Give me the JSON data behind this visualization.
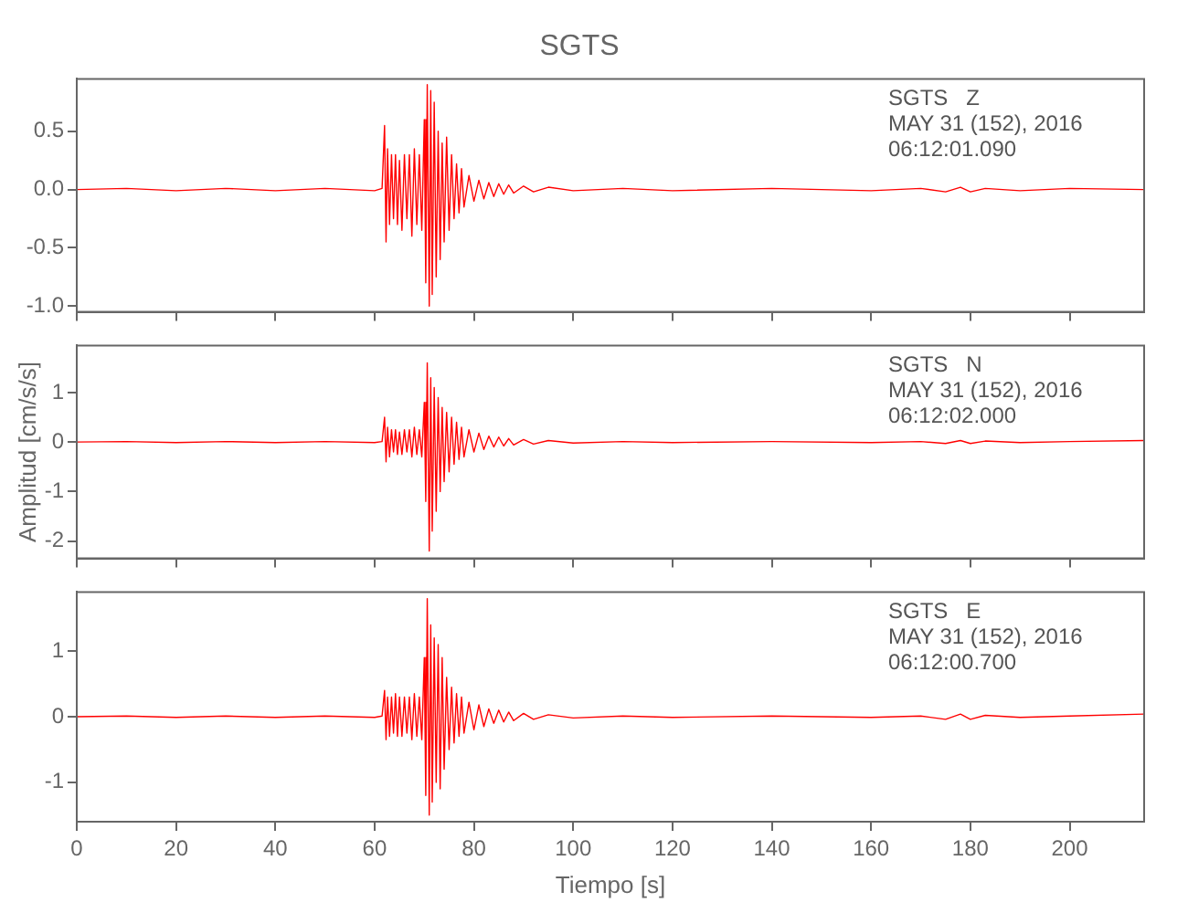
{
  "chart_data": [
    {
      "type": "line",
      "title": "SGTS",
      "annotations": [
        "SGTS   Z",
        "MAY 31 (152), 2016",
        "06:12:01.090"
      ],
      "tick_labels": "y",
      "xlim": [
        0,
        215
      ],
      "xticks": [
        0,
        20,
        40,
        60,
        80,
        100,
        120,
        140,
        160,
        180,
        200
      ],
      "ylim": [
        -1.05,
        0.95
      ],
      "yticks": [
        {
          "value": 0.5,
          "label": "0.5"
        },
        {
          "value": 0,
          "label": "0.0"
        },
        {
          "value": -0.5,
          "label": "-0.5"
        },
        {
          "value": -1,
          "label": "-1.0"
        }
      ],
      "marker": "none",
      "x": [
        0,
        10,
        20,
        30,
        40,
        50,
        60,
        61.5,
        62,
        62.3,
        62.6,
        63,
        63.4,
        63.8,
        64.2,
        64.6,
        65,
        65.5,
        66,
        66.5,
        67,
        67.5,
        68,
        68.5,
        69,
        69.5,
        70,
        70.3,
        70.6,
        71,
        71.3,
        71.6,
        72,
        72.4,
        72.8,
        73.2,
        73.6,
        74,
        74.5,
        75,
        75.5,
        76,
        76.5,
        77,
        77.5,
        78,
        79,
        80,
        81,
        82,
        83,
        84,
        85,
        86,
        87,
        88,
        90,
        92,
        95,
        100,
        110,
        120,
        140,
        160,
        170,
        175,
        178,
        180,
        183,
        190,
        200,
        215
      ],
      "series": [
        {
          "color": "#ff0000",
          "values": [
            0,
            0.01,
            -0.01,
            0.01,
            -0.01,
            0.01,
            -0.01,
            0.01,
            0.55,
            -0.45,
            0.35,
            -0.3,
            0.3,
            -0.25,
            0.3,
            -0.3,
            0.25,
            -0.35,
            0.3,
            -0.25,
            0.3,
            -0.4,
            0.35,
            -0.3,
            0.3,
            -0.35,
            0.6,
            -0.8,
            0.9,
            -1.0,
            0.85,
            -0.9,
            0.75,
            -0.75,
            0.5,
            -0.6,
            0.4,
            -0.45,
            0.45,
            -0.35,
            0.3,
            -0.25,
            0.22,
            -0.2,
            0.18,
            -0.15,
            0.12,
            -0.1,
            0.08,
            -0.08,
            0.06,
            -0.06,
            0.05,
            -0.04,
            0.04,
            -0.03,
            0.03,
            -0.02,
            0.02,
            -0.01,
            0.01,
            -0.01,
            0.01,
            -0.01,
            0.01,
            -0.02,
            0.02,
            -0.02,
            0.01,
            -0.01,
            0.01,
            0
          ]
        }
      ]
    },
    {
      "type": "line",
      "ylabel": "Amplitud [cm/s/s]",
      "annotations": [
        "SGTS   N",
        "MAY 31 (152), 2016",
        "06:12:02.000"
      ],
      "tick_labels": "y",
      "xlim": [
        0,
        215
      ],
      "xticks": [
        0,
        20,
        40,
        60,
        80,
        100,
        120,
        140,
        160,
        180,
        200
      ],
      "ylim": [
        -2.35,
        1.95
      ],
      "yticks": [
        1,
        0,
        -1,
        -2
      ],
      "marker": "none",
      "x": [
        0,
        10,
        20,
        30,
        40,
        50,
        60,
        61.5,
        62,
        62.3,
        62.6,
        63,
        63.4,
        63.8,
        64.2,
        64.6,
        65,
        65.5,
        66,
        66.5,
        67,
        67.5,
        68,
        68.5,
        69,
        69.5,
        70,
        70.3,
        70.6,
        71,
        71.3,
        71.6,
        72,
        72.4,
        72.8,
        73.2,
        73.6,
        74,
        74.5,
        75,
        75.5,
        76,
        76.5,
        77,
        77.5,
        78,
        79,
        80,
        81,
        82,
        83,
        84,
        85,
        86,
        87,
        88,
        90,
        92,
        95,
        100,
        110,
        120,
        140,
        160,
        170,
        175,
        178,
        180,
        183,
        190,
        200,
        215
      ],
      "series": [
        {
          "color": "#ff0000",
          "values": [
            0,
            0.01,
            -0.01,
            0.01,
            -0.01,
            0.01,
            -0.01,
            0.01,
            0.5,
            -0.4,
            0.3,
            -0.3,
            0.25,
            -0.2,
            0.25,
            -0.25,
            0.2,
            -0.25,
            0.25,
            -0.2,
            0.25,
            -0.3,
            0.3,
            -0.25,
            0.25,
            -0.3,
            0.8,
            -1.2,
            1.6,
            -2.2,
            1.3,
            -1.8,
            1.1,
            -1.4,
            0.9,
            -1.0,
            0.7,
            -0.8,
            0.6,
            -0.6,
            0.5,
            -0.45,
            0.4,
            -0.35,
            0.3,
            -0.3,
            0.25,
            -0.2,
            0.18,
            -0.15,
            0.12,
            -0.1,
            0.1,
            -0.08,
            0.07,
            -0.06,
            0.05,
            -0.04,
            0.03,
            -0.02,
            0.01,
            -0.01,
            0.01,
            -0.01,
            0.01,
            -0.03,
            0.03,
            -0.03,
            0.02,
            -0.01,
            0.01,
            0.03
          ]
        }
      ]
    },
    {
      "type": "line",
      "xlabel": "Tiempo [s]",
      "annotations": [
        "SGTS   E",
        "MAY 31 (152), 2016",
        "06:12:00.700"
      ],
      "xlim": [
        0,
        215
      ],
      "xticks": [
        0,
        20,
        40,
        60,
        80,
        100,
        120,
        140,
        160,
        180,
        200
      ],
      "ylim": [
        -1.6,
        1.9
      ],
      "yticks": [
        1,
        0,
        -1
      ],
      "marker": "none",
      "x": [
        0,
        10,
        20,
        30,
        40,
        50,
        60,
        61.5,
        62,
        62.3,
        62.6,
        63,
        63.4,
        63.8,
        64.2,
        64.6,
        65,
        65.5,
        66,
        66.5,
        67,
        67.5,
        68,
        68.5,
        69,
        69.5,
        70,
        70.3,
        70.6,
        71,
        71.3,
        71.6,
        72,
        72.4,
        72.8,
        73.2,
        73.6,
        74,
        74.5,
        75,
        75.5,
        76,
        76.5,
        77,
        77.5,
        78,
        79,
        80,
        81,
        82,
        83,
        84,
        85,
        86,
        87,
        88,
        90,
        92,
        95,
        100,
        110,
        120,
        140,
        160,
        170,
        175,
        178,
        180,
        183,
        190,
        200,
        215
      ],
      "series": [
        {
          "color": "#ff0000",
          "values": [
            0,
            0.01,
            -0.01,
            0.01,
            -0.01,
            0.01,
            -0.01,
            0.01,
            0.4,
            -0.35,
            0.3,
            -0.3,
            0.3,
            -0.25,
            0.35,
            -0.3,
            0.3,
            -0.3,
            0.3,
            -0.25,
            0.3,
            -0.35,
            0.35,
            -0.3,
            0.3,
            -0.35,
            0.9,
            -1.2,
            1.8,
            -1.5,
            1.4,
            -1.3,
            1.2,
            -1.0,
            1.1,
            -1.1,
            0.9,
            -0.8,
            0.6,
            -0.5,
            0.45,
            -0.4,
            0.35,
            -0.3,
            0.3,
            -0.25,
            0.22,
            -0.2,
            0.18,
            -0.15,
            0.12,
            -0.1,
            0.1,
            -0.08,
            0.07,
            -0.06,
            0.05,
            -0.04,
            0.03,
            -0.02,
            0.01,
            -0.01,
            0.01,
            -0.01,
            0.01,
            -0.04,
            0.04,
            -0.04,
            0.02,
            -0.01,
            0.01,
            0.04
          ]
        }
      ]
    }
  ]
}
